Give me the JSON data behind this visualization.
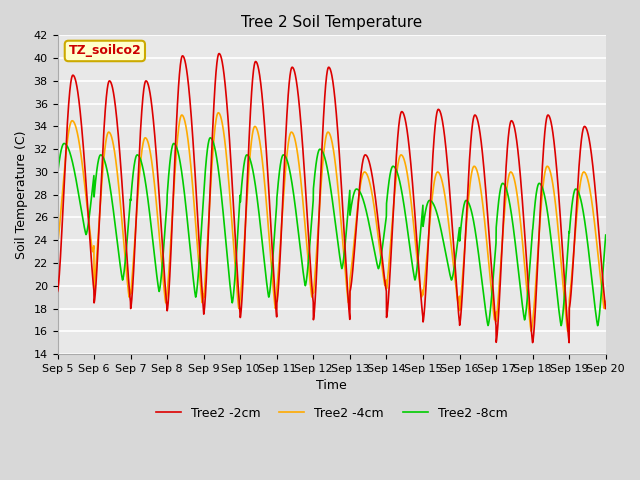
{
  "title": "Tree 2 Soil Temperature",
  "xlabel": "Time",
  "ylabel": "Soil Temperature (C)",
  "ylim": [
    14,
    42
  ],
  "x_tick_labels": [
    "Sep 5",
    "Sep 6",
    "Sep 7",
    "Sep 8",
    "Sep 9",
    "Sep 10",
    "Sep 11",
    "Sep 12",
    "Sep 13",
    "Sep 14",
    "Sep 15",
    "Sep 16",
    "Sep 17",
    "Sep 18",
    "Sep 19",
    "Sep 20"
  ],
  "legend_labels": [
    "Tree2 -2cm",
    "Tree2 -4cm",
    "Tree2 -8cm"
  ],
  "line_colors": [
    "#dd0000",
    "#ffaa00",
    "#00cc00"
  ],
  "annotation_text": "TZ_soilco2",
  "annotation_bg": "#ffffcc",
  "annotation_border": "#ccaa00",
  "bg_color": "#e8e8e8",
  "grid_color": "#ffffff",
  "title_fontsize": 11,
  "label_fontsize": 9,
  "tick_fontsize": 8,
  "legend_fontsize": 9
}
